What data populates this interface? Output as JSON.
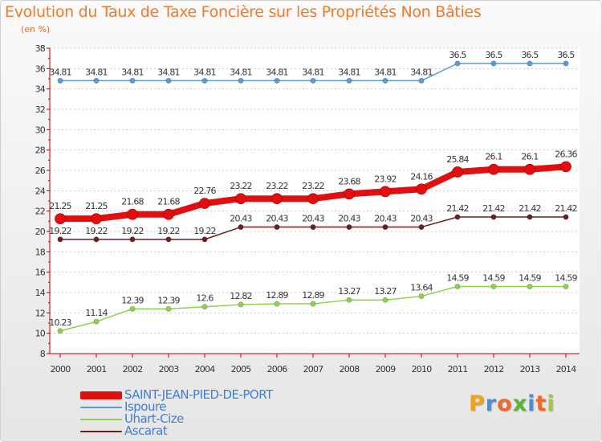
{
  "title": "Evolution du Taux de Taxe Foncière sur les Propriétés Non Bâties",
  "unit": "(en %)",
  "logo": {
    "letters": [
      "P",
      "r",
      "o",
      "x",
      "i",
      "t",
      "i"
    ],
    "colors": [
      "#f4a11a",
      "#4a90d9",
      "#f06a2a",
      "#5db33a",
      "#4a90d9",
      "#f06a2a",
      "#a2c842"
    ]
  },
  "chart_data": {
    "type": "line",
    "title": "Evolution du Taux de Taxe Foncière sur les Propriétés Non Bâties",
    "ylabel": "(en %)",
    "xlabel": "",
    "ylim": [
      8,
      38
    ],
    "yticks": [
      8,
      10,
      12,
      14,
      16,
      18,
      20,
      22,
      24,
      26,
      28,
      30,
      32,
      34,
      36,
      38
    ],
    "grid": "horizontal dashed",
    "categories": [
      "2000",
      "2001",
      "2002",
      "2003",
      "2004",
      "2005",
      "2006",
      "2007",
      "2008",
      "2009",
      "2010",
      "2011",
      "2012",
      "2013",
      "2014"
    ],
    "series": [
      {
        "name": "SAINT-JEAN-PIED-DE-PORT",
        "color": "#e01010",
        "values": [
          21.25,
          21.25,
          21.68,
          21.68,
          22.76,
          23.22,
          23.22,
          23.22,
          23.68,
          23.92,
          24.16,
          25.84,
          26.1,
          26.1,
          26.36
        ],
        "labels": [
          "21.25",
          "21.25",
          "21.68",
          "21.68",
          "22.76",
          "23.22",
          "23.22",
          "23.22",
          "23.68",
          "23.92",
          "24.16",
          "25.84",
          "26.1",
          "26.1",
          "26.36"
        ]
      },
      {
        "name": "Ispoure",
        "color": "#5b9bd5",
        "values": [
          34.81,
          34.81,
          34.81,
          34.81,
          34.81,
          34.81,
          34.81,
          34.81,
          34.81,
          34.81,
          34.81,
          36.5,
          36.5,
          36.5,
          36.5
        ],
        "labels": [
          "34.81",
          "34.81",
          "34.81",
          "34.81",
          "34.81",
          "34.81",
          "34.81",
          "34.81",
          "34.81",
          "34.81",
          "34.81",
          "36.5",
          "36.5",
          "36.5",
          "36.5"
        ]
      },
      {
        "name": "Uhart-Cize",
        "color": "#8fd14f",
        "values": [
          10.23,
          11.14,
          12.39,
          12.39,
          12.6,
          12.82,
          12.89,
          12.89,
          13.27,
          13.27,
          13.64,
          14.59,
          14.59,
          14.59,
          14.59
        ],
        "labels": [
          "10.23",
          "11.14",
          "12.39",
          "12.39",
          "12.6",
          "12.82",
          "12.89",
          "12.89",
          "13.27",
          "13.27",
          "13.64",
          "14.59",
          "14.59",
          "14.59",
          "14.59"
        ]
      },
      {
        "name": "Ascarat",
        "color": "#6b1f1f",
        "values": [
          19.22,
          19.22,
          19.22,
          19.22,
          19.22,
          20.43,
          20.43,
          20.43,
          20.43,
          20.43,
          20.43,
          21.42,
          21.42,
          21.42,
          21.42
        ],
        "labels": [
          "19.22",
          "19.22",
          "19.22",
          "19.22",
          "19.22",
          "20.43",
          "20.43",
          "20.43",
          "20.43",
          "20.43",
          "20.43",
          "21.42",
          "21.42",
          "21.42",
          "21.42"
        ]
      }
    ]
  }
}
